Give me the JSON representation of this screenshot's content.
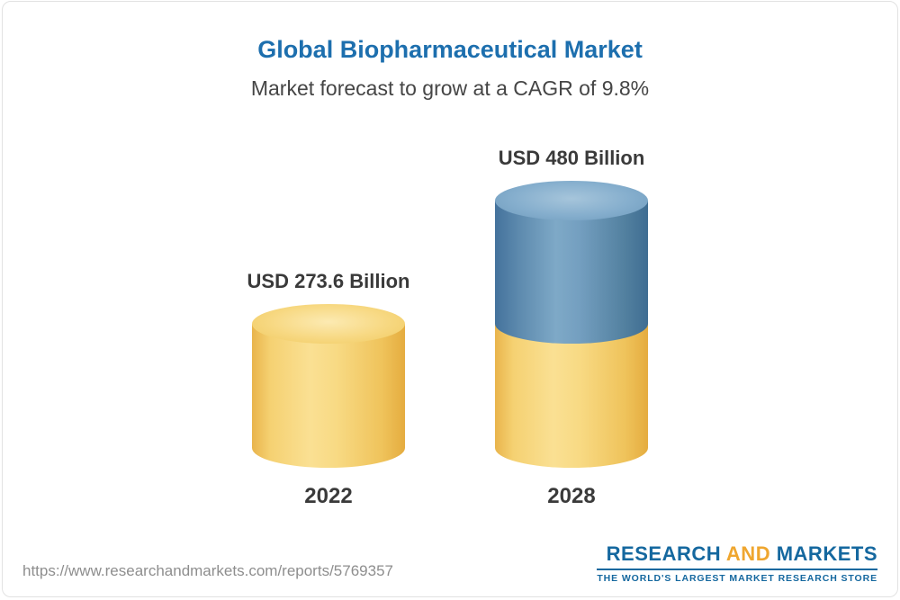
{
  "header": {
    "title": "Global Biopharmaceutical Market",
    "subtitle": "Market forecast to grow at a CAGR of 9.8%"
  },
  "chart_data": {
    "type": "bar",
    "subtype": "3d-cylinder",
    "categories": [
      "2022",
      "2028"
    ],
    "values": [
      273.6,
      480
    ],
    "value_labels": [
      "USD 273.6 Billion",
      "USD 480 Billion"
    ],
    "unit": "USD Billion",
    "title": "Global Biopharmaceutical Market",
    "subtitle": "Market forecast to grow at a CAGR of 9.8%",
    "cagr_percent": 9.8,
    "legend": "none",
    "grid": false,
    "colors": {
      "base_segment": "#f3cf74",
      "growth_segment": "#6d9abc",
      "title_blue": "#1d6fae"
    }
  },
  "footer": {
    "url": "https://www.researchandmarkets.com/reports/5769357",
    "logo": {
      "word_research": "RESEARCH",
      "word_and": "AND",
      "word_markets": "MARKETS",
      "tagline": "THE WORLD'S LARGEST MARKET RESEARCH STORE"
    }
  }
}
